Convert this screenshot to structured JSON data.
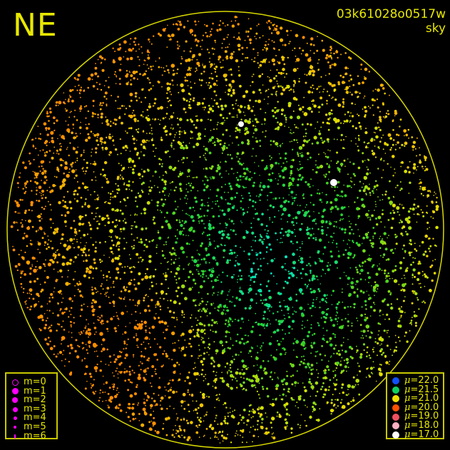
{
  "header": {
    "corner_label": "NE",
    "frame_id": "03k61028o0517w",
    "frame_type": "sky"
  },
  "colors": {
    "text": "#e8e800",
    "border": "#c8c800",
    "magnitude_marker": "#ff00ff"
  },
  "legend_magnitude": {
    "items": [
      {
        "label": "m=0",
        "style": "ring"
      },
      {
        "label": "m=1",
        "style": "filled"
      },
      {
        "label": "m=2",
        "style": "filled"
      },
      {
        "label": "m=3",
        "style": "filled"
      },
      {
        "label": "m=4",
        "style": "filled"
      },
      {
        "label": "m=5",
        "style": "filled"
      },
      {
        "label": "m=6",
        "style": "filled"
      }
    ]
  },
  "legend_surface_brightness": {
    "symbol": "μ",
    "items": [
      {
        "value": "22.0",
        "color": "#1050ff"
      },
      {
        "value": "21.5",
        "color": "#10d060"
      },
      {
        "value": "21.0",
        "color": "#f0e000"
      },
      {
        "value": "20.0",
        "color": "#ff5000"
      },
      {
        "value": "19.0",
        "color": "#f05060"
      },
      {
        "value": "18.0",
        "color": "#ffb0c0"
      },
      {
        "value": "17.0",
        "color": "#ffffff"
      }
    ]
  }
}
